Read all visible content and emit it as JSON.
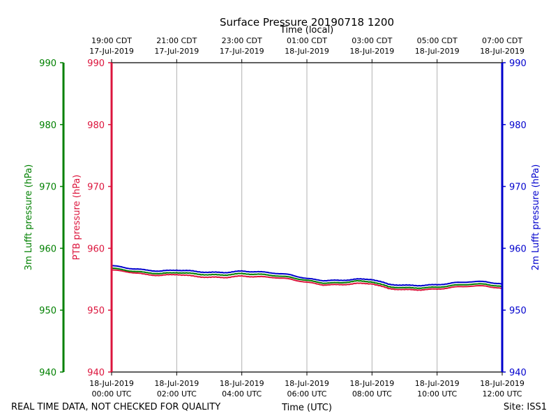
{
  "title": "Surface Pressure 20190718 1200",
  "footer": {
    "disclaimer": "REAL TIME DATA, NOT CHECKED FOR QUALITY",
    "site": "Site: ISS1"
  },
  "colors": {
    "ptb": "#dc143c",
    "lufft3m": "#008000",
    "lufft2m": "#0000cd",
    "grid": "#b0b0b0",
    "axis": "#000000"
  },
  "chart_data": {
    "type": "line",
    "title": "Surface Pressure 20190718 1200",
    "xlabel": "Time (UTC)",
    "x2label": "Time (local)",
    "x_unit": "hours since 18-Jul-2019 00:00 UTC",
    "xlim": [
      0,
      12
    ],
    "ylim": [
      940,
      990
    ],
    "yticks": [
      940,
      950,
      960,
      970,
      980,
      990
    ],
    "grid": "vertical",
    "x_ticks_utc": [
      {
        "x": 0,
        "date": "18-Jul-2019",
        "time": "00:00 UTC"
      },
      {
        "x": 2,
        "date": "18-Jul-2019",
        "time": "02:00 UTC"
      },
      {
        "x": 4,
        "date": "18-Jul-2019",
        "time": "04:00 UTC"
      },
      {
        "x": 6,
        "date": "18-Jul-2019",
        "time": "06:00 UTC"
      },
      {
        "x": 8,
        "date": "18-Jul-2019",
        "time": "08:00 UTC"
      },
      {
        "x": 10,
        "date": "18-Jul-2019",
        "time": "10:00 UTC"
      },
      {
        "x": 12,
        "date": "18-Jul-2019",
        "time": "12:00 UTC"
      }
    ],
    "x_ticks_local": [
      {
        "x": 0,
        "time": "19:00 CDT",
        "date": "17-Jul-2019"
      },
      {
        "x": 2,
        "time": "21:00 CDT",
        "date": "17-Jul-2019"
      },
      {
        "x": 4,
        "time": "23:00 CDT",
        "date": "17-Jul-2019"
      },
      {
        "x": 6,
        "time": "01:00 CDT",
        "date": "18-Jul-2019"
      },
      {
        "x": 8,
        "time": "03:00 CDT",
        "date": "18-Jul-2019"
      },
      {
        "x": 10,
        "time": "05:00 CDT",
        "date": "18-Jul-2019"
      },
      {
        "x": 12,
        "time": "07:00 CDT",
        "date": "18-Jul-2019"
      }
    ],
    "y_axes": [
      {
        "id": "lufft3m",
        "label": "3m Lufft pressure (hPa)",
        "color": "#008000",
        "side": "outer-left"
      },
      {
        "id": "ptb",
        "label": "PTB pressure (hPa)",
        "color": "#dc143c",
        "side": "left"
      },
      {
        "id": "lufft2m",
        "label": "2m Lufft pressure (hPa)",
        "color": "#0000cd",
        "side": "right"
      }
    ],
    "series": [
      {
        "name": "PTB pressure",
        "color": "#dc143c",
        "x": [
          0,
          0.5,
          1,
          1.5,
          2,
          2.5,
          3,
          3.5,
          4,
          4.5,
          5,
          5.5,
          6,
          6.5,
          7,
          7.5,
          8,
          8.5,
          9,
          9.5,
          10,
          10.5,
          11,
          11.5,
          12
        ],
        "values": [
          956.5,
          956.2,
          955.8,
          955.6,
          955.8,
          955.5,
          955.3,
          955.3,
          955.5,
          955.4,
          955.3,
          955.0,
          954.5,
          954.1,
          954.1,
          954.3,
          954.3,
          953.5,
          953.3,
          953.3,
          953.4,
          953.7,
          953.9,
          953.9,
          953.5
        ]
      },
      {
        "name": "3m Lufft pressure",
        "color": "#008000",
        "x": [
          0,
          0.5,
          1,
          1.5,
          2,
          2.5,
          3,
          3.5,
          4,
          4.5,
          5,
          5.5,
          6,
          6.5,
          7,
          7.5,
          8,
          8.5,
          9,
          9.5,
          10,
          10.5,
          11,
          11.5,
          12
        ],
        "values": [
          956.8,
          956.4,
          956.1,
          955.9,
          956.1,
          955.9,
          955.7,
          955.7,
          955.9,
          955.8,
          955.6,
          955.3,
          954.8,
          954.4,
          954.4,
          954.7,
          954.6,
          953.8,
          953.6,
          953.6,
          953.7,
          954.0,
          954.2,
          954.2,
          953.8
        ]
      },
      {
        "name": "2m Lufft pressure",
        "color": "#0000cd",
        "x": [
          0,
          0.5,
          1,
          1.5,
          2,
          2.5,
          3,
          3.5,
          4,
          4.5,
          5,
          5.5,
          6,
          6.5,
          7,
          7.5,
          8,
          8.5,
          9,
          9.5,
          10,
          10.5,
          11,
          11.5,
          12
        ],
        "values": [
          957.2,
          956.8,
          956.5,
          956.3,
          956.5,
          956.3,
          956.1,
          956.1,
          956.3,
          956.2,
          956.0,
          955.7,
          955.1,
          954.8,
          954.8,
          955.0,
          955.0,
          954.2,
          954.0,
          954.0,
          954.1,
          954.4,
          954.6,
          954.6,
          954.2
        ]
      }
    ]
  }
}
